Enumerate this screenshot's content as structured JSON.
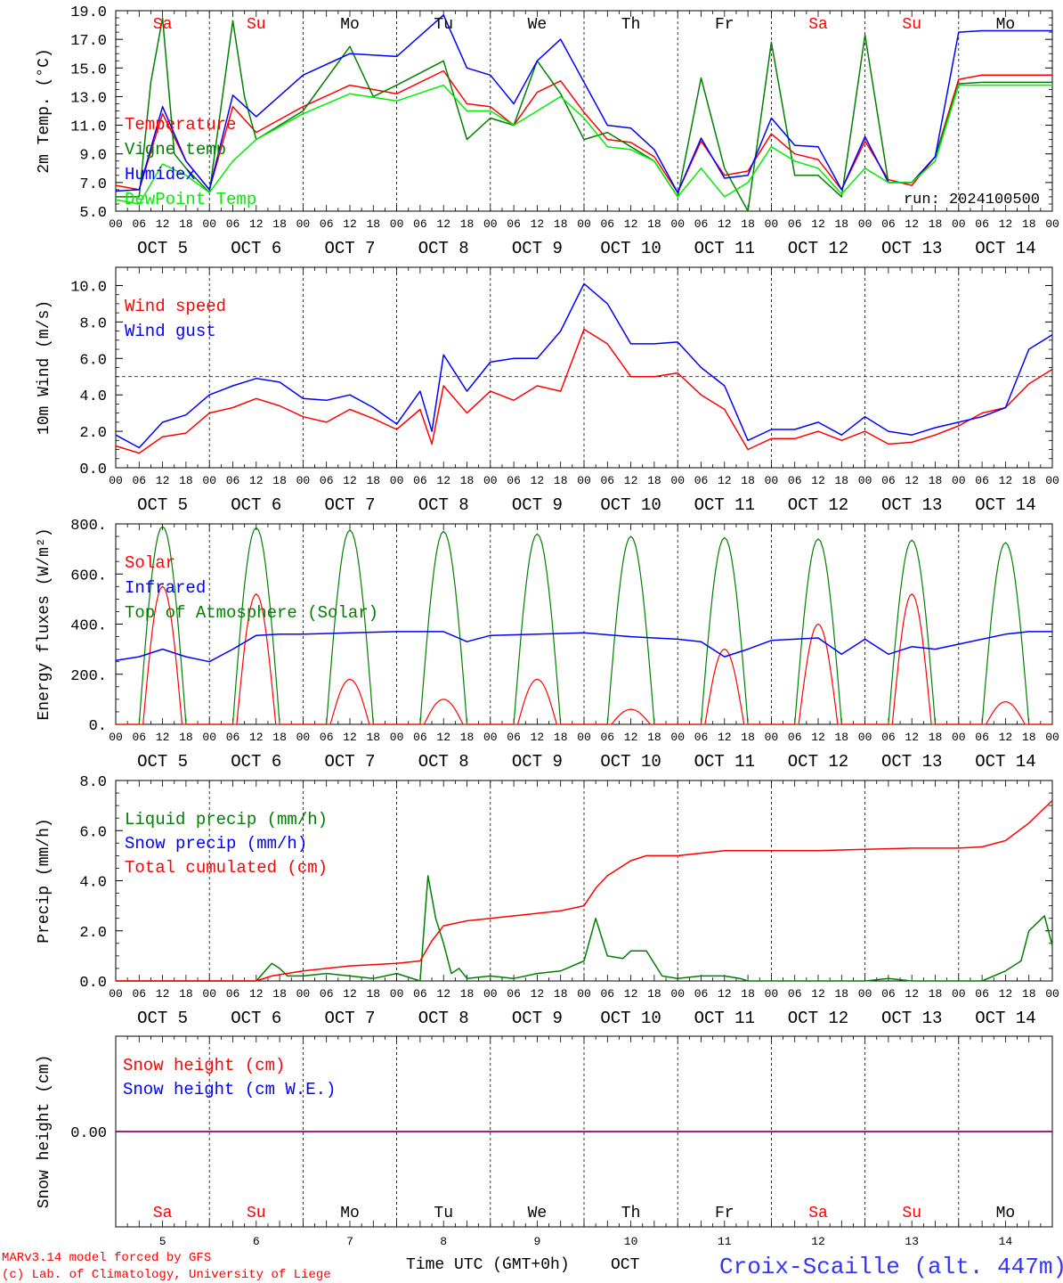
{
  "chart_data": {
    "type": "line",
    "run_label": "run: 2024100500",
    "x_axis": {
      "hour_ticks": [
        "00",
        "06",
        "12",
        "18"
      ],
      "date_labels": [
        "OCT  5",
        "OCT  6",
        "OCT  7",
        "OCT  8",
        "OCT  9",
        "OCT 10",
        "OCT 11",
        "OCT 12",
        "OCT 13",
        "OCT 14"
      ],
      "weekdays": [
        "Sa",
        "Su",
        "Mo",
        "Tu",
        "We",
        "Th",
        "Fr",
        "Sa",
        "Su",
        "Mo"
      ],
      "weekend_days": [
        0,
        1,
        7,
        8
      ],
      "day_numbers": [
        "5",
        "6",
        "7",
        "8",
        "9",
        "10",
        "11",
        "12",
        "13",
        "14"
      ],
      "xlabel": "Time UTC (GMT+0h)",
      "month": "OCT",
      "xlim_hours": [
        0,
        240
      ]
    },
    "panels": [
      {
        "ylabel": "2m Temp. (°C)",
        "ylim": [
          5.0,
          19.0
        ],
        "ytick_labels": [
          "5.0",
          "7.0",
          "9.0",
          "11.0",
          "13.0",
          "15.0",
          "17.0",
          "19.0"
        ],
        "legend": [
          "Temperature",
          "Vigne temp",
          "Humidex",
          "DewPoint Temp"
        ],
        "series": [
          {
            "name": "Temperature",
            "color": "#ff0000",
            "x": [
              0,
              6,
              12,
              18,
              24,
              30,
              36,
              48,
              60,
              72,
              84,
              90,
              96,
              102,
              108,
              114,
              120,
              126,
              132,
              138,
              144,
              150,
              156,
              162,
              168,
              174,
              180,
              186,
              192,
              198,
              204,
              210,
              216,
              222,
              228,
              234,
              240
            ],
            "y": [
              6.8,
              6.5,
              11.8,
              8.5,
              6.5,
              12.3,
              10.5,
              12.3,
              13.8,
              13.2,
              14.8,
              12.5,
              12.3,
              11.0,
              13.3,
              14.1,
              11.9,
              10.0,
              9.8,
              8.8,
              6.3,
              9.9,
              7.5,
              7.8,
              10.4,
              9.0,
              8.6,
              6.5,
              9.9,
              7.2,
              6.8,
              8.8,
              14.2,
              14.5,
              14.5,
              14.5,
              14.5
            ]
          },
          {
            "name": "Vigne temp",
            "color": "#008000",
            "x": [
              0,
              6,
              9,
              12,
              15,
              18,
              24,
              30,
              33,
              36,
              48,
              60,
              66,
              72,
              84,
              90,
              96,
              102,
              108,
              114,
              120,
              126,
              132,
              138,
              144,
              150,
              156,
              162,
              168,
              174,
              180,
              186,
              192,
              198,
              204,
              210,
              216,
              222,
              228,
              234,
              240
            ],
            "y": [
              6.0,
              6.0,
              14.0,
              18.5,
              9.0,
              8.0,
              6.3,
              18.3,
              13.0,
              10.0,
              12.0,
              16.5,
              13.0,
              13.8,
              15.5,
              10.0,
              11.5,
              11.0,
              15.5,
              13.2,
              10.0,
              10.5,
              9.5,
              8.5,
              6.0,
              14.3,
              8.0,
              5.0,
              16.8,
              7.5,
              7.5,
              6.0,
              17.3,
              7.0,
              7.0,
              8.8,
              13.9,
              14.0,
              14.0,
              14.0,
              14.0
            ]
          },
          {
            "name": "Humidex",
            "color": "#0000ff",
            "x": [
              0,
              6,
              12,
              18,
              24,
              30,
              36,
              48,
              60,
              72,
              84,
              90,
              96,
              102,
              108,
              114,
              120,
              126,
              132,
              138,
              144,
              150,
              156,
              162,
              168,
              174,
              180,
              186,
              192,
              198,
              204,
              210,
              216,
              222,
              228,
              234,
              240
            ],
            "y": [
              6.4,
              6.5,
              12.3,
              8.5,
              6.5,
              13.1,
              11.6,
              14.5,
              16.0,
              15.8,
              18.7,
              15.0,
              14.5,
              12.5,
              15.5,
              17.0,
              14.0,
              11.0,
              10.8,
              9.3,
              6.3,
              10.1,
              7.3,
              7.5,
              11.5,
              9.6,
              9.5,
              6.5,
              10.2,
              7.0,
              7.0,
              8.8,
              17.5,
              17.6,
              17.6,
              17.6,
              17.6
            ]
          },
          {
            "name": "DewPoint Temp",
            "color": "#00ee00",
            "x": [
              0,
              6,
              12,
              18,
              24,
              30,
              36,
              48,
              60,
              72,
              84,
              90,
              96,
              102,
              108,
              114,
              120,
              126,
              132,
              138,
              144,
              150,
              156,
              162,
              168,
              174,
              180,
              186,
              192,
              198,
              204,
              210,
              216,
              222,
              228,
              234,
              240
            ],
            "y": [
              5.8,
              5.5,
              8.3,
              7.5,
              6.3,
              8.5,
              10.0,
              11.8,
              13.2,
              12.7,
              13.8,
              12.0,
              12.0,
              11.0,
              12.0,
              13.0,
              11.5,
              9.5,
              9.3,
              8.5,
              6.0,
              8.0,
              6.0,
              7.0,
              9.5,
              8.5,
              8.0,
              6.2,
              8.0,
              7.0,
              7.0,
              8.5,
              13.8,
              13.8,
              13.8,
              13.8,
              13.8
            ]
          }
        ],
        "ref_line": null
      },
      {
        "ylabel": "10m Wind (m/s)",
        "ylim": [
          0.0,
          11.0
        ],
        "ytick_labels": [
          "0.0",
          "2.0",
          "4.0",
          "6.0",
          "8.0",
          "10.0"
        ],
        "ytick_values": [
          0,
          2,
          4,
          6,
          8,
          10
        ],
        "legend": [
          "Wind speed",
          "Wind gust"
        ],
        "ref_line": 5.0,
        "series": [
          {
            "name": "Wind speed",
            "color": "#ff0000",
            "x": [
              0,
              6,
              12,
              18,
              24,
              30,
              36,
              42,
              48,
              54,
              60,
              66,
              72,
              78,
              81,
              84,
              90,
              96,
              102,
              108,
              114,
              120,
              126,
              132,
              138,
              144,
              150,
              156,
              162,
              168,
              174,
              180,
              186,
              192,
              198,
              204,
              210,
              216,
              222,
              228,
              234,
              240
            ],
            "y": [
              1.2,
              0.8,
              1.7,
              1.9,
              3.0,
              3.3,
              3.8,
              3.4,
              2.8,
              2.5,
              3.2,
              2.7,
              2.1,
              3.2,
              1.3,
              4.5,
              3.0,
              4.2,
              3.7,
              4.5,
              4.2,
              7.6,
              6.8,
              5.0,
              5.0,
              5.2,
              4.0,
              3.2,
              1.0,
              1.6,
              1.6,
              2.0,
              1.5,
              2.0,
              1.3,
              1.4,
              1.8,
              2.3,
              3.0,
              3.3,
              4.6,
              5.4
            ]
          },
          {
            "name": "Wind gust",
            "color": "#0000ff",
            "x": [
              0,
              6,
              12,
              18,
              24,
              30,
              36,
              42,
              48,
              54,
              60,
              66,
              72,
              78,
              81,
              84,
              90,
              96,
              102,
              108,
              114,
              120,
              126,
              132,
              138,
              144,
              150,
              156,
              162,
              168,
              174,
              180,
              186,
              192,
              198,
              204,
              210,
              216,
              222,
              228,
              234,
              240
            ],
            "y": [
              1.8,
              1.1,
              2.5,
              2.9,
              4.0,
              4.5,
              4.9,
              4.7,
              3.8,
              3.7,
              4.0,
              3.3,
              2.4,
              4.2,
              2.0,
              6.2,
              4.2,
              5.8,
              6.0,
              6.0,
              7.5,
              10.1,
              9.0,
              6.8,
              6.8,
              6.9,
              5.5,
              4.5,
              1.5,
              2.1,
              2.1,
              2.5,
              1.8,
              2.8,
              2.0,
              1.8,
              2.2,
              2.5,
              2.8,
              3.3,
              6.5,
              7.3
            ]
          }
        ]
      },
      {
        "ylabel": "Energy fluxes (W/m²)",
        "ylim": [
          0,
          800
        ],
        "ytick_labels": [
          "0.",
          "200.",
          "400.",
          "600.",
          "800."
        ],
        "ytick_values": [
          0,
          200,
          400,
          600,
          800
        ],
        "legend": [
          "Solar",
          "Infrared",
          "Top of Atmosphere (Solar)"
        ],
        "ref_line": null,
        "solar_peaks": [
          550,
          520,
          180,
          100,
          180,
          60,
          300,
          400,
          520,
          90
        ],
        "toa_peaks": [
          790,
          785,
          775,
          770,
          760,
          750,
          745,
          740,
          735,
          725
        ],
        "series": [
          {
            "name": "Infrared",
            "color": "#0000ff",
            "x": [
              0,
              6,
              12,
              18,
              24,
              30,
              36,
              42,
              48,
              60,
              72,
              84,
              90,
              96,
              108,
              120,
              132,
              144,
              150,
              156,
              162,
              168,
              174,
              180,
              186,
              192,
              198,
              204,
              210,
              216,
              222,
              228,
              234,
              240
            ],
            "y": [
              255,
              270,
              300,
              270,
              250,
              300,
              355,
              360,
              360,
              365,
              370,
              370,
              330,
              355,
              360,
              365,
              350,
              340,
              330,
              270,
              300,
              335,
              340,
              345,
              280,
              340,
              280,
              310,
              300,
              320,
              340,
              360,
              370,
              370
            ]
          }
        ]
      },
      {
        "ylabel": "Precip (mm/h)",
        "ylim": [
          0.0,
          8.0
        ],
        "ytick_labels": [
          "0.0",
          "2.0",
          "4.0",
          "6.0",
          "8.0"
        ],
        "ytick_values": [
          0,
          2,
          4,
          6,
          8
        ],
        "legend": [
          "Liquid precip (mm/h)",
          "Snow precip (mm/h)",
          "Total cumulated (cm)"
        ],
        "ref_line": null,
        "series": [
          {
            "name": "Liquid precip (mm/h)",
            "color": "#008000",
            "x": [
              0,
              36,
              40,
              42,
              44,
              48,
              54,
              60,
              66,
              72,
              78,
              80,
              82,
              84,
              86,
              88,
              90,
              96,
              102,
              108,
              114,
              120,
              123,
              126,
              130,
              132,
              136,
              140,
              144,
              150,
              156,
              160,
              162,
              168,
              174,
              180,
              186,
              192,
              198,
              204,
              210,
              216,
              222,
              228,
              232,
              234,
              238,
              240
            ],
            "y": [
              0,
              0,
              0.7,
              0.5,
              0.2,
              0.2,
              0.3,
              0.2,
              0.1,
              0.3,
              0,
              4.2,
              2.5,
              1.5,
              0.3,
              0.5,
              0.1,
              0.2,
              0.1,
              0.3,
              0.4,
              0.8,
              2.5,
              1.0,
              0.9,
              1.2,
              1.2,
              0.2,
              0.1,
              0.2,
              0.2,
              0.1,
              0,
              0,
              0,
              0,
              0,
              0,
              0.1,
              0,
              0,
              0,
              0,
              0.4,
              0.8,
              2.0,
              2.6,
              1.4
            ]
          },
          {
            "name": "Total cumulated (cm)",
            "color": "#ff0000",
            "x": [
              0,
              36,
              40,
              48,
              60,
              72,
              78,
              81,
              84,
              90,
              96,
              108,
              114,
              120,
              123,
              126,
              132,
              136,
              144,
              156,
              168,
              180,
              192,
              204,
              216,
              222,
              228,
              234,
              240
            ],
            "y": [
              0,
              0,
              0.2,
              0.4,
              0.6,
              0.7,
              0.8,
              1.6,
              2.2,
              2.4,
              2.5,
              2.7,
              2.8,
              3.0,
              3.7,
              4.2,
              4.8,
              5.0,
              5.0,
              5.2,
              5.2,
              5.2,
              5.25,
              5.3,
              5.3,
              5.35,
              5.6,
              6.3,
              7.2
            ]
          }
        ]
      },
      {
        "ylabel": "Snow height (cm)",
        "ytick_labels": [
          "0.00"
        ],
        "legend": [
          "Snow height (cm)",
          "Snow height (cm W.E.)"
        ],
        "series": [
          {
            "name": "Snow height (cm)",
            "color": "#ff0000",
            "x": [
              0,
              240
            ],
            "y": [
              0,
              0
            ]
          },
          {
            "name": "Snow height (cm W.E.)",
            "color": "#0000ff",
            "x": [
              0,
              240
            ],
            "y": [
              0,
              0
            ]
          }
        ]
      }
    ]
  },
  "footer": {
    "model_line": "MARv3.14 model forced by GFS",
    "copyright_line": "(c) Lab. of Climatology, University of Liege",
    "station": "Croix-Scaille (alt. 447m)"
  },
  "colors": {
    "red": "#ff0000",
    "green": "#008000",
    "blue": "#0000ff",
    "lightgreen": "#00ee00",
    "purple": "#800080",
    "station_blue": "#3333ff"
  }
}
